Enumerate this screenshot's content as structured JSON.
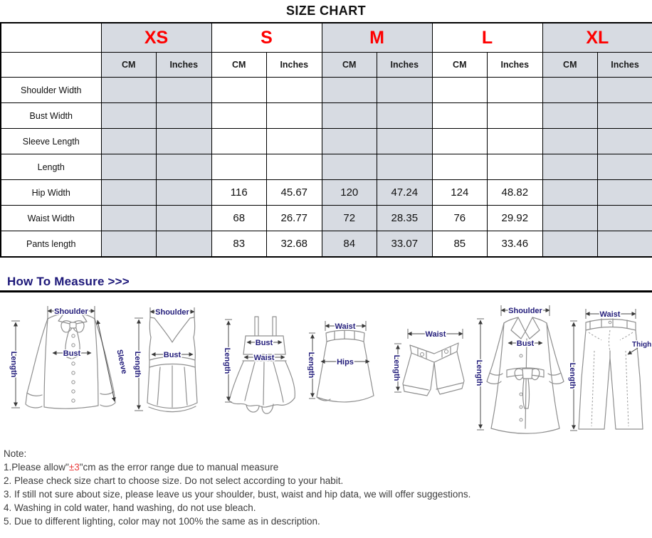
{
  "title": "SIZE CHART",
  "table": {
    "sizes": [
      "XS",
      "S",
      "M",
      "L",
      "XL"
    ],
    "unit_headers": [
      "CM",
      "Inches"
    ],
    "rows": [
      {
        "label": "Shoulder Width",
        "values": [
          "",
          "",
          "",
          "",
          "",
          "",
          "",
          "",
          "",
          ""
        ]
      },
      {
        "label": "Bust Width",
        "values": [
          "",
          "",
          "",
          "",
          "",
          "",
          "",
          "",
          "",
          ""
        ]
      },
      {
        "label": "Sleeve Length",
        "values": [
          "",
          "",
          "",
          "",
          "",
          "",
          "",
          "",
          "",
          ""
        ]
      },
      {
        "label": "Length",
        "values": [
          "",
          "",
          "",
          "",
          "",
          "",
          "",
          "",
          "",
          ""
        ]
      },
      {
        "label": "Hip Width",
        "values": [
          "",
          "",
          "116",
          "45.67",
          "120",
          "47.24",
          "124",
          "48.82",
          "",
          ""
        ]
      },
      {
        "label": "Waist Width",
        "values": [
          "",
          "",
          "68",
          "26.77",
          "72",
          "28.35",
          "76",
          "29.92",
          "",
          ""
        ]
      },
      {
        "label": "Pants length",
        "values": [
          "",
          "",
          "83",
          "32.68",
          "84",
          "33.07",
          "85",
          "33.46",
          "",
          ""
        ]
      }
    ]
  },
  "how_to_measure": {
    "heading": "How To Measure >>>"
  },
  "figures": [
    {
      "item": "blouse",
      "labels": {
        "shoulder": "Shoulder",
        "length": "Length",
        "bust": "Bust",
        "sleeve": "Sleeve"
      }
    },
    {
      "item": "tank-top",
      "labels": {
        "shoulder": "Shoulder",
        "length": "Length",
        "bust": "Bust"
      }
    },
    {
      "item": "dress",
      "labels": {
        "bust": "Bust",
        "waist": "Waist",
        "length": "Length"
      }
    },
    {
      "item": "skirt",
      "labels": {
        "waist": "Waist",
        "hips": "Hips",
        "length": "Length"
      }
    },
    {
      "item": "shorts",
      "labels": {
        "waist": "Waist",
        "length": "Length"
      }
    },
    {
      "item": "coat",
      "labels": {
        "shoulder": "Shoulder",
        "bust": "Bust",
        "length": "Length"
      }
    },
    {
      "item": "pants",
      "labels": {
        "waist": "Waist",
        "length": "Length",
        "thigh": "Thigh"
      }
    }
  ],
  "notes": {
    "heading": "Note:",
    "note1": {
      "prefix": "1.Please allow\"",
      "highlight": "±3",
      "suffix": "\"cm as the error range due to manual measure"
    },
    "items": [
      "2. Please check size chart to choose size. Do not select according to your habit.",
      "3. If still not sure about size, please leave us your shoulder, bust, waist and hip data, we will offer suggestions.",
      "4. Washing in cold water, hand washing, do not use bleach.",
      "5. Due to different lighting, color may not 100% the same as in description."
    ]
  },
  "colors": {
    "size_letter_red": "#fe0000",
    "shaded_column_fill": "#d7dbe2",
    "heading_navy": "#1b1678",
    "figure_label_navy": "#221c7a",
    "note_highlight_red": "#e83a3a"
  }
}
